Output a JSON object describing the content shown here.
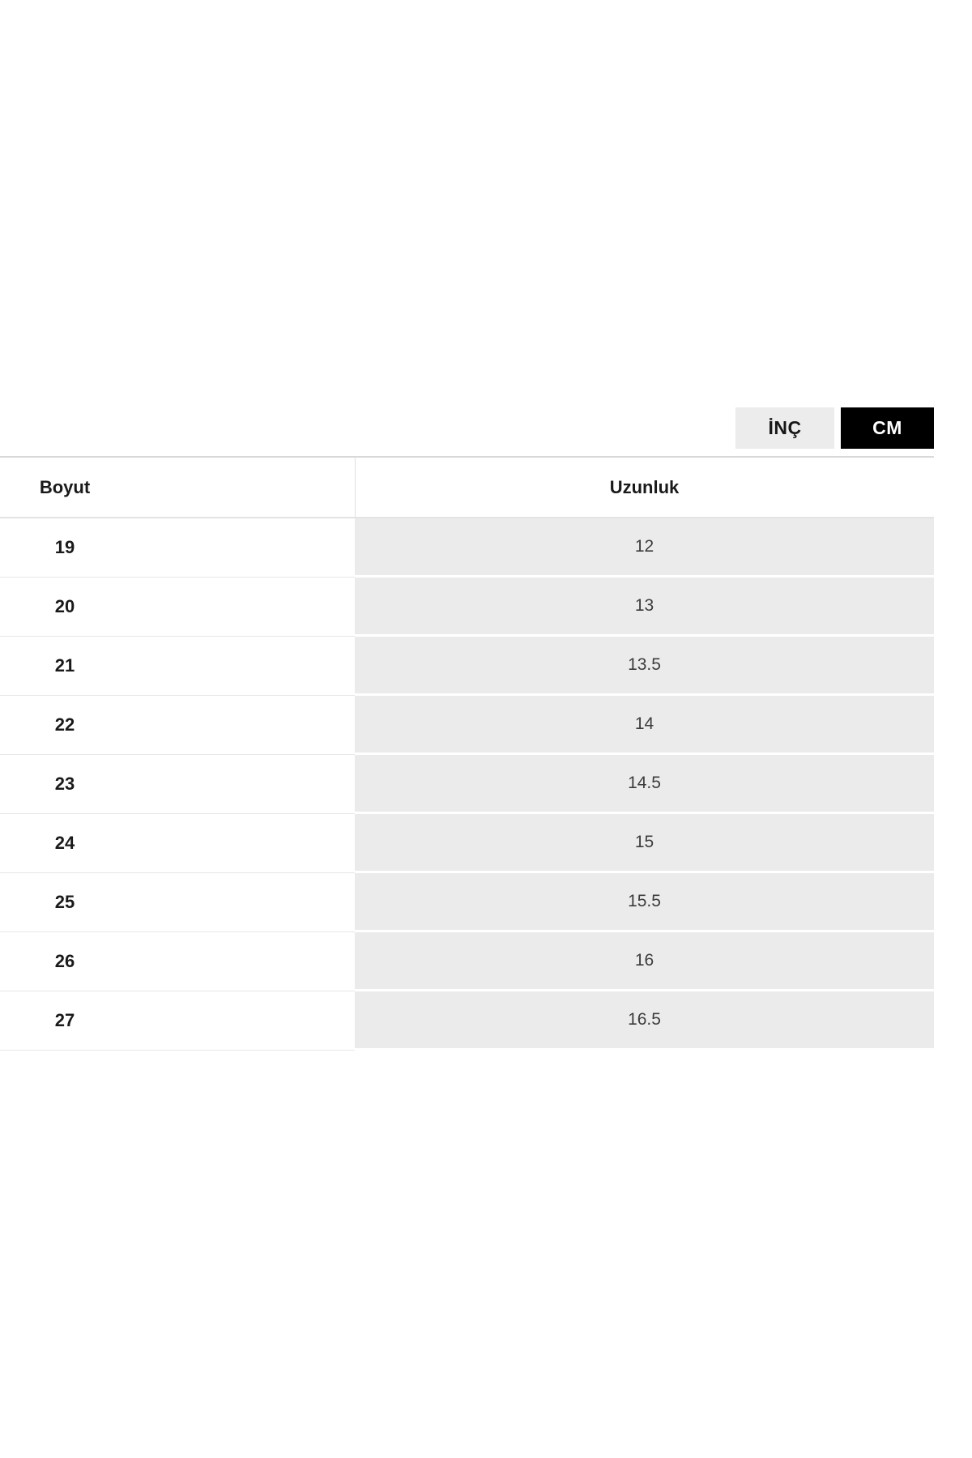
{
  "unit_toggle": {
    "inch_label": "İNÇ",
    "cm_label": "CM",
    "selected_unit": "CM"
  },
  "table": {
    "header": {
      "size_label": "Boyut",
      "length_label": "Uzunluk"
    },
    "rows": [
      {
        "size": "19",
        "length": "12"
      },
      {
        "size": "20",
        "length": "13"
      },
      {
        "size": "21",
        "length": "13.5"
      },
      {
        "size": "22",
        "length": "14"
      },
      {
        "size": "23",
        "length": "14.5"
      },
      {
        "size": "24",
        "length": "15"
      },
      {
        "size": "25",
        "length": "15.5"
      },
      {
        "size": "26",
        "length": "16"
      },
      {
        "size": "27",
        "length": "16.5"
      }
    ]
  },
  "colors": {
    "selected_toggle_bg": "#000000",
    "selected_toggle_text": "#ffffff",
    "inactive_toggle_bg": "#ececec",
    "length_cell_bg": "#ebebeb",
    "table_border": "#d9d9d9"
  }
}
